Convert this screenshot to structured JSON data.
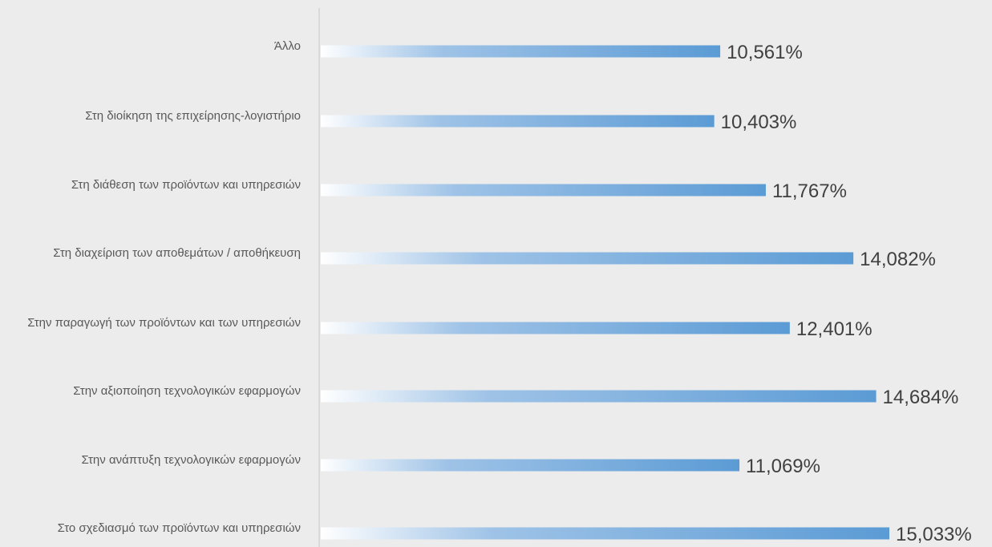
{
  "chart_data": {
    "type": "bar",
    "orientation": "horizontal",
    "categories": [
      "Άλλο",
      "Στη διοίκηση της επιχείρησης-λογιστήριο",
      "Στη διάθεση των προϊόντων και υπηρεσιών",
      "Στη διαχείριση των αποθεμάτων / αποθήκευση",
      "Στην παραγωγή των προϊόντων και των υπηρεσιών",
      "Στην αξιοποίηση τεχνολογικών εφαρμογών",
      "Στην ανάπτυξη τεχνολογικών εφαρμογών",
      "Στο σχεδιασμό των προϊόντων και υπηρεσιών"
    ],
    "values": [
      10.561,
      10.403,
      11.767,
      14.082,
      12.401,
      14.684,
      11.069,
      15.033
    ],
    "value_labels": [
      "10,561%",
      "10,403%",
      "11,767%",
      "14,082%",
      "12,401%",
      "14,684%",
      "11,069%",
      "15,033%"
    ],
    "title": "",
    "xlabel": "",
    "ylabel": "",
    "xlim": [
      0,
      15.033
    ],
    "grid": false,
    "legend": "none",
    "colors": {
      "bar_start": "#ffffff",
      "bar_end": "#5b9bd5",
      "axis": "#d9d9d9",
      "background": "#ececec",
      "category_text": "#595959",
      "value_text": "#404040"
    }
  }
}
